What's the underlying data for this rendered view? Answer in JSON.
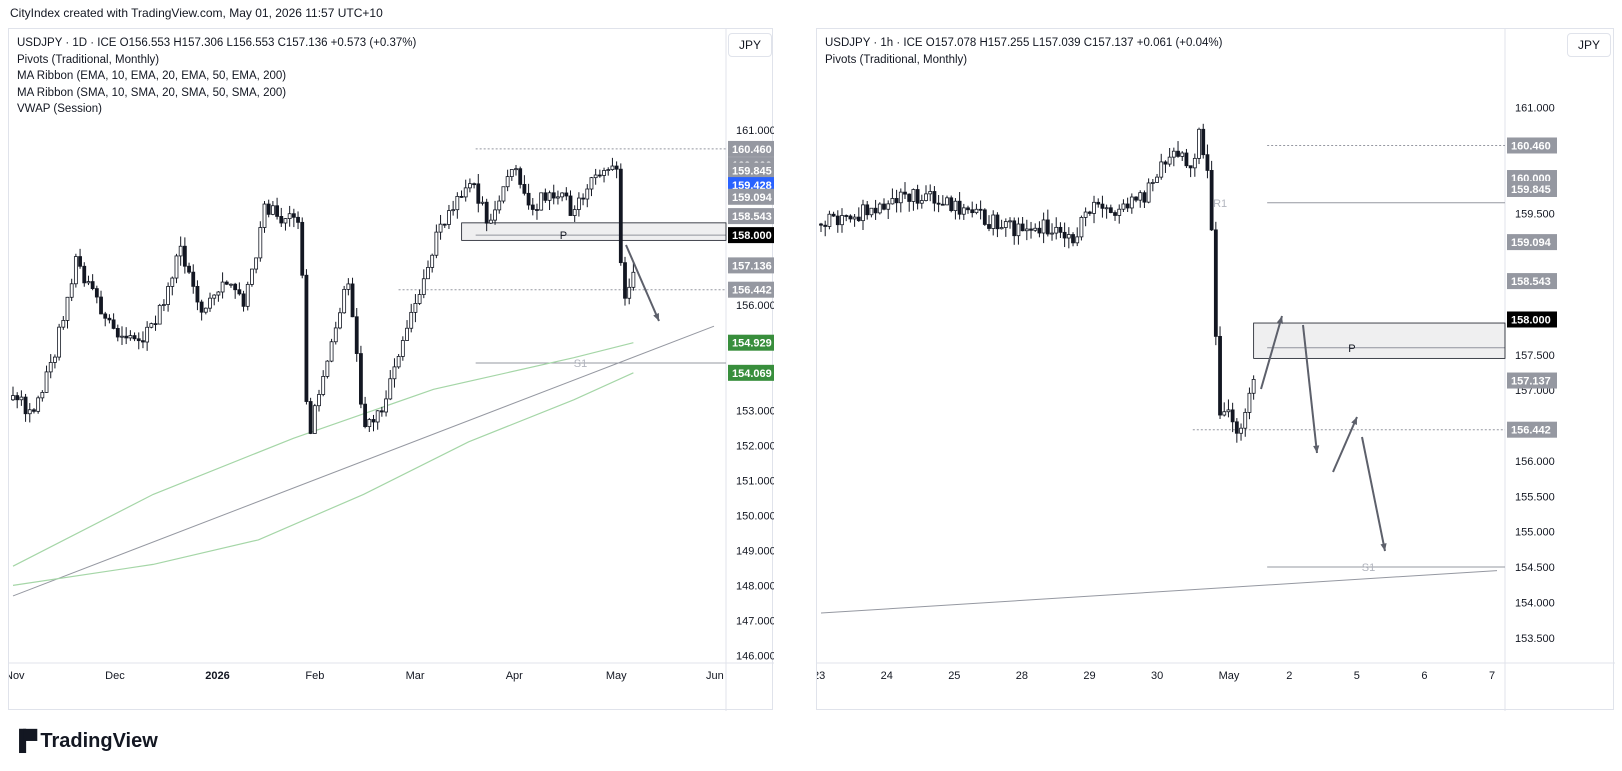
{
  "header": {
    "text": "CityIndex created with TradingView.com, May 01, 2026 11:57 UTC+10"
  },
  "footer": {
    "logo_text": "TradingView"
  },
  "colors": {
    "candle": "#131722",
    "ema_ribbon": "#a5d6a7",
    "trendline": "#9598a1",
    "blue_label": "#2962ff",
    "green_label": "#388e3c",
    "gray_label": "#9598a1"
  },
  "left": {
    "currency": "JPY",
    "legend": [
      "USDJPY · 1D · ICE   O156.553  H157.306  L156.553  C157.136  +0.573 (+0.37%)",
      "Pivots (Traditional, Monthly)",
      "MA Ribbon (EMA, 10, EMA, 20, EMA, 50, EMA, 200)",
      "MA Ribbon (SMA, 10, SMA, 20, SMA, 50, SMA, 200)",
      "VWAP (Session)"
    ],
    "y_ticks": [
      "161.000",
      "156.000",
      "153.000",
      "152.000",
      "151.000",
      "150.000",
      "149.000",
      "148.000",
      "147.000",
      "146.000"
    ],
    "x_ticks": [
      "Nov",
      "Dec",
      "2026",
      "Feb",
      "Mar",
      "Apr",
      "May",
      "Jun"
    ],
    "pivot_labels": {
      "p": "P",
      "s1": "S1"
    },
    "price_labels": [
      {
        "text": "160.460",
        "style": "gray"
      },
      {
        "text": "160.000",
        "style": "gray"
      },
      {
        "text": "159.845",
        "style": "gray"
      },
      {
        "text": "159.428",
        "style": "blue"
      },
      {
        "text": "159.094",
        "style": "gray"
      },
      {
        "text": "158.543",
        "style": "gray"
      },
      {
        "text": "158.000",
        "style": "black"
      },
      {
        "text": "157.136",
        "style": "gray"
      },
      {
        "text": "156.442",
        "style": "gray"
      },
      {
        "text": "154.929",
        "style": "green"
      },
      {
        "text": "154.069",
        "style": "green"
      }
    ]
  },
  "right": {
    "currency": "JPY",
    "legend": [
      "USDJPY · 1h · ICE   O157.078  H157.255  L157.039  C157.137  +0.061 (+0.04%)",
      "Pivots (Traditional, Monthly)"
    ],
    "y_ticks": [
      "161.000",
      "159.500",
      "157.500",
      "157.000",
      "156.000",
      "155.500",
      "155.000",
      "154.500",
      "154.000",
      "153.500"
    ],
    "x_ticks": [
      "23",
      "24",
      "25",
      "28",
      "29",
      "30",
      "May",
      "2",
      "5",
      "6",
      "7"
    ],
    "pivot_labels": {
      "p": "P",
      "s1": "S1",
      "r1": "R1"
    },
    "price_labels": [
      {
        "text": "160.460",
        "style": "gray"
      },
      {
        "text": "160.000",
        "style": "gray"
      },
      {
        "text": "159.845",
        "style": "gray"
      },
      {
        "text": "159.094",
        "style": "gray"
      },
      {
        "text": "158.543",
        "style": "gray"
      },
      {
        "text": "158.000",
        "style": "black"
      },
      {
        "text": "157.137",
        "style": "gray"
      },
      {
        "text": "156.442",
        "style": "gray"
      }
    ]
  },
  "chart_data": [
    {
      "type": "candlestick",
      "title": "USDJPY · 1D · ICE",
      "ylim": [
        145.9,
        161.6
      ],
      "ohlc_last": {
        "open": 156.553,
        "high": 157.306,
        "low": 156.553,
        "close": 157.136,
        "change": 0.573,
        "change_pct": 0.37
      },
      "close_path": [
        {
          "x": 0.0,
          "y": 153.3
        },
        {
          "x": 0.03,
          "y": 153.0
        },
        {
          "x": 0.06,
          "y": 154.7
        },
        {
          "x": 0.09,
          "y": 157.2
        },
        {
          "x": 0.12,
          "y": 156.0
        },
        {
          "x": 0.15,
          "y": 155.2
        },
        {
          "x": 0.18,
          "y": 154.8
        },
        {
          "x": 0.21,
          "y": 155.8
        },
        {
          "x": 0.24,
          "y": 157.7
        },
        {
          "x": 0.27,
          "y": 155.6
        },
        {
          "x": 0.3,
          "y": 156.6
        },
        {
          "x": 0.33,
          "y": 156.0
        },
        {
          "x": 0.36,
          "y": 158.8
        },
        {
          "x": 0.39,
          "y": 158.5
        },
        {
          "x": 0.41,
          "y": 158.2
        },
        {
          "x": 0.42,
          "y": 152.2
        },
        {
          "x": 0.45,
          "y": 154.5
        },
        {
          "x": 0.48,
          "y": 156.8
        },
        {
          "x": 0.5,
          "y": 152.6
        },
        {
          "x": 0.53,
          "y": 153.2
        },
        {
          "x": 0.56,
          "y": 155.1
        },
        {
          "x": 0.59,
          "y": 157.2
        },
        {
          "x": 0.62,
          "y": 158.6
        },
        {
          "x": 0.65,
          "y": 159.6
        },
        {
          "x": 0.68,
          "y": 158.3
        },
        {
          "x": 0.71,
          "y": 160.1
        },
        {
          "x": 0.74,
          "y": 158.8
        },
        {
          "x": 0.77,
          "y": 159.3
        },
        {
          "x": 0.8,
          "y": 158.7
        },
        {
          "x": 0.83,
          "y": 159.6
        },
        {
          "x": 0.86,
          "y": 160.2
        },
        {
          "x": 0.87,
          "y": 156.1
        },
        {
          "x": 0.885,
          "y": 157.136
        }
      ],
      "levels": [
        {
          "name": "P",
          "value": 158.0
        },
        {
          "name": "S1",
          "value": 154.35
        },
        {
          "name": "resistance",
          "value": 160.46
        },
        {
          "name": "support",
          "value": 156.442
        }
      ],
      "ribbon_ema200": [
        [
          0.0,
          148.55
        ],
        [
          0.2,
          150.6
        ],
        [
          0.4,
          152.2
        ],
        [
          0.6,
          153.6
        ],
        [
          0.8,
          154.5
        ],
        [
          0.885,
          154.929
        ]
      ],
      "ribbon_sma200": [
        [
          0.0,
          148.0
        ],
        [
          0.2,
          148.6
        ],
        [
          0.35,
          149.3
        ],
        [
          0.5,
          150.6
        ],
        [
          0.65,
          152.1
        ],
        [
          0.8,
          153.3
        ],
        [
          0.885,
          154.069
        ]
      ],
      "trendline": [
        [
          0.0,
          147.7
        ],
        [
          1.0,
          155.4
        ]
      ]
    },
    {
      "type": "candlestick",
      "title": "USDJPY · 1h · ICE",
      "ylim": [
        153.2,
        161.4
      ],
      "ohlc_last": {
        "open": 157.078,
        "high": 157.255,
        "low": 157.039,
        "close": 157.137,
        "change": 0.061,
        "change_pct": 0.04
      },
      "close_path": [
        {
          "x": 0.0,
          "y": 159.35
        },
        {
          "x": 0.05,
          "y": 159.5
        },
        {
          "x": 0.1,
          "y": 159.65
        },
        {
          "x": 0.15,
          "y": 159.75
        },
        {
          "x": 0.2,
          "y": 159.55
        },
        {
          "x": 0.25,
          "y": 159.4
        },
        {
          "x": 0.3,
          "y": 159.2
        },
        {
          "x": 0.35,
          "y": 159.35
        },
        {
          "x": 0.37,
          "y": 159.05
        },
        {
          "x": 0.4,
          "y": 159.6
        },
        {
          "x": 0.45,
          "y": 159.55
        },
        {
          "x": 0.48,
          "y": 159.75
        },
        {
          "x": 0.5,
          "y": 160.1
        },
        {
          "x": 0.53,
          "y": 160.35
        },
        {
          "x": 0.55,
          "y": 160.2
        },
        {
          "x": 0.56,
          "y": 160.65
        },
        {
          "x": 0.57,
          "y": 160.2
        },
        {
          "x": 0.58,
          "y": 159.1
        },
        {
          "x": 0.585,
          "y": 157.4
        },
        {
          "x": 0.59,
          "y": 156.6
        },
        {
          "x": 0.6,
          "y": 156.7
        },
        {
          "x": 0.61,
          "y": 156.4
        },
        {
          "x": 0.62,
          "y": 156.5
        },
        {
          "x": 0.63,
          "y": 156.9
        },
        {
          "x": 0.64,
          "y": 157.137
        }
      ],
      "levels": [
        {
          "name": "R1",
          "value": 159.65
        },
        {
          "name": "P",
          "value": 157.6
        },
        {
          "name": "S1",
          "value": 154.5
        },
        {
          "name": "resistance",
          "value": 160.46
        },
        {
          "name": "support",
          "value": 156.442
        }
      ],
      "trendline": [
        [
          0.0,
          153.85
        ],
        [
          1.0,
          154.45
        ]
      ]
    }
  ]
}
